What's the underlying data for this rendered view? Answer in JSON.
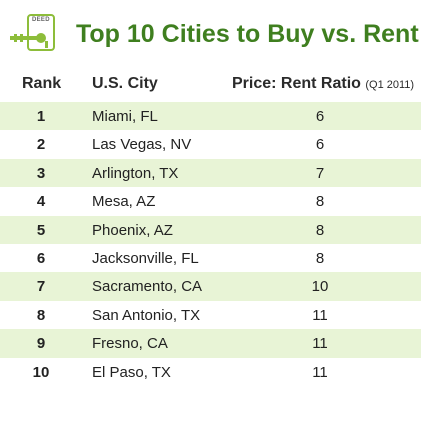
{
  "logo": {
    "text": "DEED"
  },
  "title": "Top 10 Cities to Buy vs. Rent",
  "headers": {
    "rank": "Rank",
    "city": "U.S. City",
    "ratio": "Price: Rent Ratio",
    "ratio_sub": "(Q1 2011)"
  },
  "rows": [
    {
      "rank": "1",
      "city": "Miami, FL",
      "ratio": "6"
    },
    {
      "rank": "2",
      "city": "Las Vegas, NV",
      "ratio": "6"
    },
    {
      "rank": "3",
      "city": "Arlington, TX",
      "ratio": "7"
    },
    {
      "rank": "4",
      "city": "Mesa, AZ",
      "ratio": "8"
    },
    {
      "rank": "5",
      "city": "Phoenix, AZ",
      "ratio": "8"
    },
    {
      "rank": "6",
      "city": "Jacksonville, FL",
      "ratio": "8"
    },
    {
      "rank": "7",
      "city": "Sacramento, CA",
      "ratio": "10"
    },
    {
      "rank": "8",
      "city": "San Antonio, TX",
      "ratio": "11"
    },
    {
      "rank": "9",
      "city": "Fresno, CA",
      "ratio": "11"
    },
    {
      "rank": "10",
      "city": "El Paso, TX",
      "ratio": "11"
    }
  ],
  "colors": {
    "title": "#3f7f1f",
    "shade": "#e8f4d6",
    "logo": "#8dbd3a"
  },
  "icons": {
    "logo": "key-icon"
  }
}
